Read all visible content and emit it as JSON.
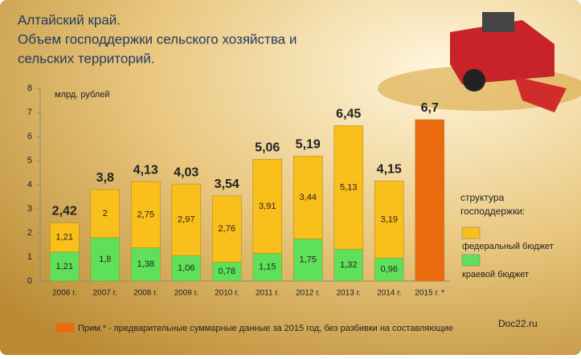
{
  "chart_data": {
    "type": "bar",
    "stacked": true,
    "title": [
      "Алтайский край.",
      "Объем господдержки сельского хозяйства и",
      "сельских территорий."
    ],
    "y_axis_label": "млрд. рублей",
    "categories": [
      "2006 г.",
      "2007 г.",
      "2008 г.",
      "2009 г.",
      "2010 г.",
      "2011 г.",
      "2012 г.",
      "2013 г.",
      "2014 г.",
      "2015 г. *"
    ],
    "series": [
      {
        "name": "краевой бюджет",
        "color": "#5fe05a",
        "values": [
          1.21,
          1.8,
          1.38,
          1.06,
          0.78,
          1.15,
          1.75,
          1.32,
          0.96,
          null
        ],
        "value_labels": [
          "1,21",
          "1,8",
          "1,38",
          "1,06",
          "0,78",
          "1,15",
          "1,75",
          "1,32",
          "0,96",
          null
        ]
      },
      {
        "name": "федеральный бюджет",
        "color": "#f9bf1a",
        "values": [
          1.21,
          2,
          2.75,
          2.97,
          2.76,
          3.91,
          3.44,
          5.13,
          3.19,
          null
        ],
        "value_labels": [
          "1,21",
          "2",
          "2,75",
          "2,97",
          "2,76",
          "3,91",
          "3,44",
          "5,13",
          "3,19",
          null
        ]
      },
      {
        "name": "Прим.* - предварительные суммарные данные за 2015 год, без разбивки на составляющие",
        "color": "#ea6a10",
        "values": [
          null,
          null,
          null,
          null,
          null,
          null,
          null,
          null,
          null,
          6.7
        ]
      }
    ],
    "totals": {
      "values": [
        2.42,
        3.8,
        4.13,
        4.03,
        3.54,
        5.06,
        5.19,
        6.45,
        4.15,
        6.7
      ],
      "value_labels": [
        "2,42",
        "3,8",
        "4,13",
        "4,03",
        "3,54",
        "5,06",
        "5,19",
        "6,45",
        "4,15",
        "6,7"
      ]
    },
    "legend_title": [
      "структура",
      "господдержки:"
    ],
    "watermark": "Doc22.ru",
    "ylim": [
      0,
      8
    ],
    "yticks": [
      0,
      1,
      2,
      3,
      4,
      5,
      6,
      7,
      8
    ]
  }
}
